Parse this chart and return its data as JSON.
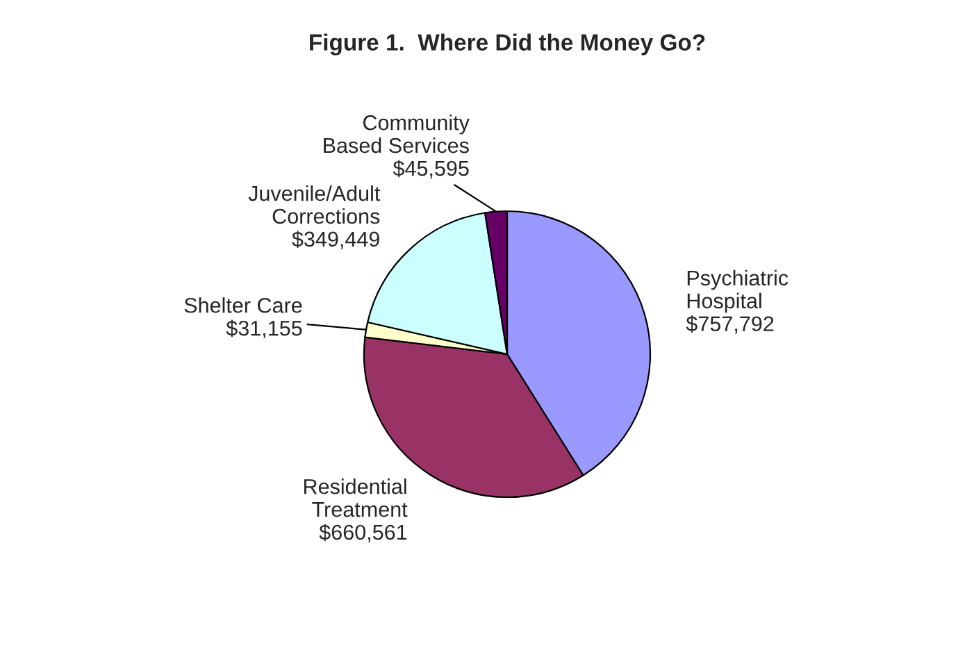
{
  "chart_data": {
    "type": "pie",
    "title": "Figure 1.  Where Did the Money Go?",
    "categories": [
      "Psychiatric\nHospital",
      "Residential\nTreatment",
      "Shelter Care",
      "Juvenile/Adult\nCorrections",
      "Community\nBased Services"
    ],
    "values": [
      757792,
      660561,
      31155,
      349449,
      45595
    ],
    "value_labels": [
      "$757,792",
      "$660,561",
      "$31,155",
      "$349,449",
      "$45,595"
    ],
    "colors": [
      "#9999ff",
      "#993366",
      "#ffffcc",
      "#ccffff",
      "#660066"
    ],
    "legend": false
  }
}
